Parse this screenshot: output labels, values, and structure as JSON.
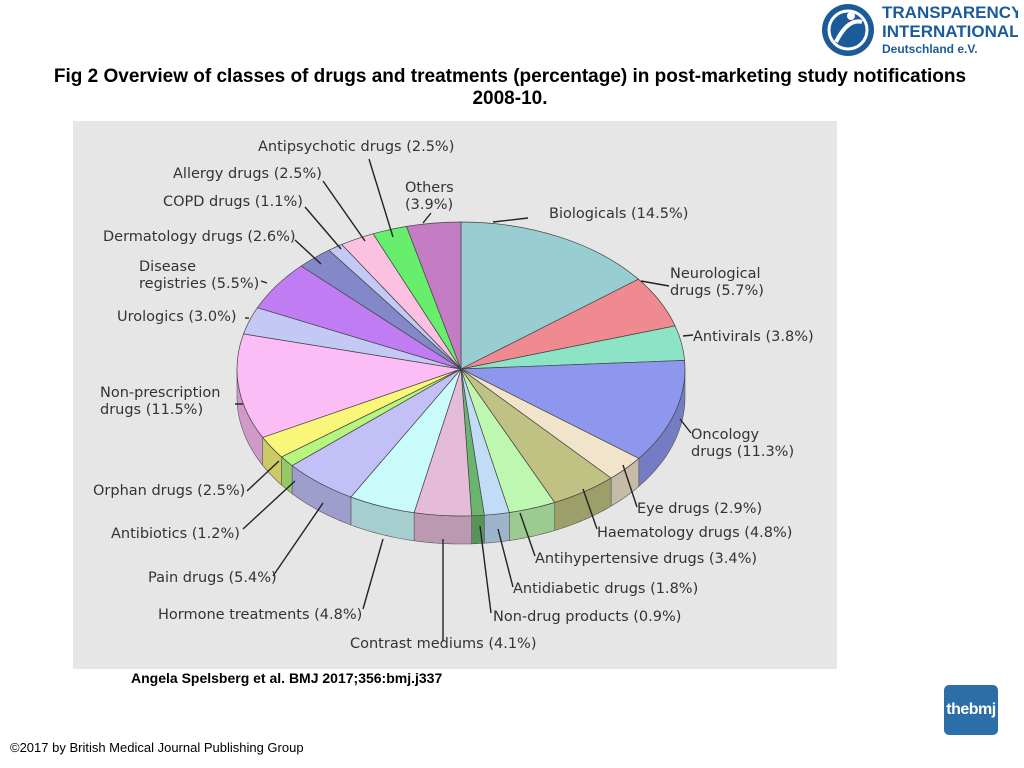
{
  "title": "Fig 2 Overview of classes of drugs and treatments (percentage) in post-marketing study notifications 2008-10.",
  "citation": "Angela Spelsberg et al. BMJ 2017;356:bmj.j337",
  "copyright": "©2017 by British Medical Journal Publishing Group",
  "logos": {
    "ti_line1": "TRANSPARENCY",
    "ti_line2": "INTERNATIONAL",
    "ti_line3": "Deutschland e.V.",
    "bmj_text": "thebmj",
    "ti_color": "#1c5b9a"
  },
  "chart_data": {
    "type": "pie",
    "style": "3d",
    "slices": [
      {
        "label": "Biologicals (14.5%)",
        "value": 14.5,
        "color": "#98cdd1"
      },
      {
        "label": "Neurological drugs (5.7%)",
        "value": 5.7,
        "color": "#f08a91"
      },
      {
        "label": "Antivirals (3.8%)",
        "value": 3.8,
        "color": "#8de3c6"
      },
      {
        "label": "Oncology drugs (11.3%)",
        "value": 11.3,
        "color": "#8d97ee"
      },
      {
        "label": "Eye drugs (2.9%)",
        "value": 2.9,
        "color": "#f2e4cb"
      },
      {
        "label": "Haematology drugs (4.8%)",
        "value": 4.8,
        "color": "#c0c283"
      },
      {
        "label": "Antihypertensive drugs (3.4%)",
        "value": 3.4,
        "color": "#bdf7b0"
      },
      {
        "label": "Antidiabetic drugs (1.8%)",
        "value": 1.8,
        "color": "#c0dcf6"
      },
      {
        "label": "Non-drug products (0.9%)",
        "value": 0.9,
        "color": "#6bb46e"
      },
      {
        "label": "Contrast mediums (4.1%)",
        "value": 4.1,
        "color": "#e4bcd8"
      },
      {
        "label": "Hormone treatments (4.8%)",
        "value": 4.8,
        "color": "#cafbfb"
      },
      {
        "label": "Pain drugs (5.4%)",
        "value": 5.4,
        "color": "#c2c0f7"
      },
      {
        "label": "Antibiotics (1.2%)",
        "value": 1.2,
        "color": "#b6f57e"
      },
      {
        "label": "Orphan drugs (2.5%)",
        "value": 2.5,
        "color": "#f9f67a"
      },
      {
        "label": "Non-prescription drugs (11.5%)",
        "value": 11.5,
        "color": "#fcbcf5"
      },
      {
        "label": "Urologics (3.0%)",
        "value": 3.0,
        "color": "#c4c8f4"
      },
      {
        "label": "Disease registries (5.5%)",
        "value": 5.5,
        "color": "#c07cf2"
      },
      {
        "label": "Dermatology drugs (2.6%)",
        "value": 2.6,
        "color": "#8288c8"
      },
      {
        "label": "COPD drugs (1.1%)",
        "value": 1.1,
        "color": "#c4c8f4"
      },
      {
        "label": "Allergy drugs (2.5%)",
        "value": 2.5,
        "color": "#fcc0e0"
      },
      {
        "label": "Antipsychotic drugs (2.5%)",
        "value": 2.5,
        "color": "#66ee6c"
      },
      {
        "label": "Others (3.9%)",
        "value": 3.9,
        "color": "#c47cc4"
      }
    ]
  }
}
